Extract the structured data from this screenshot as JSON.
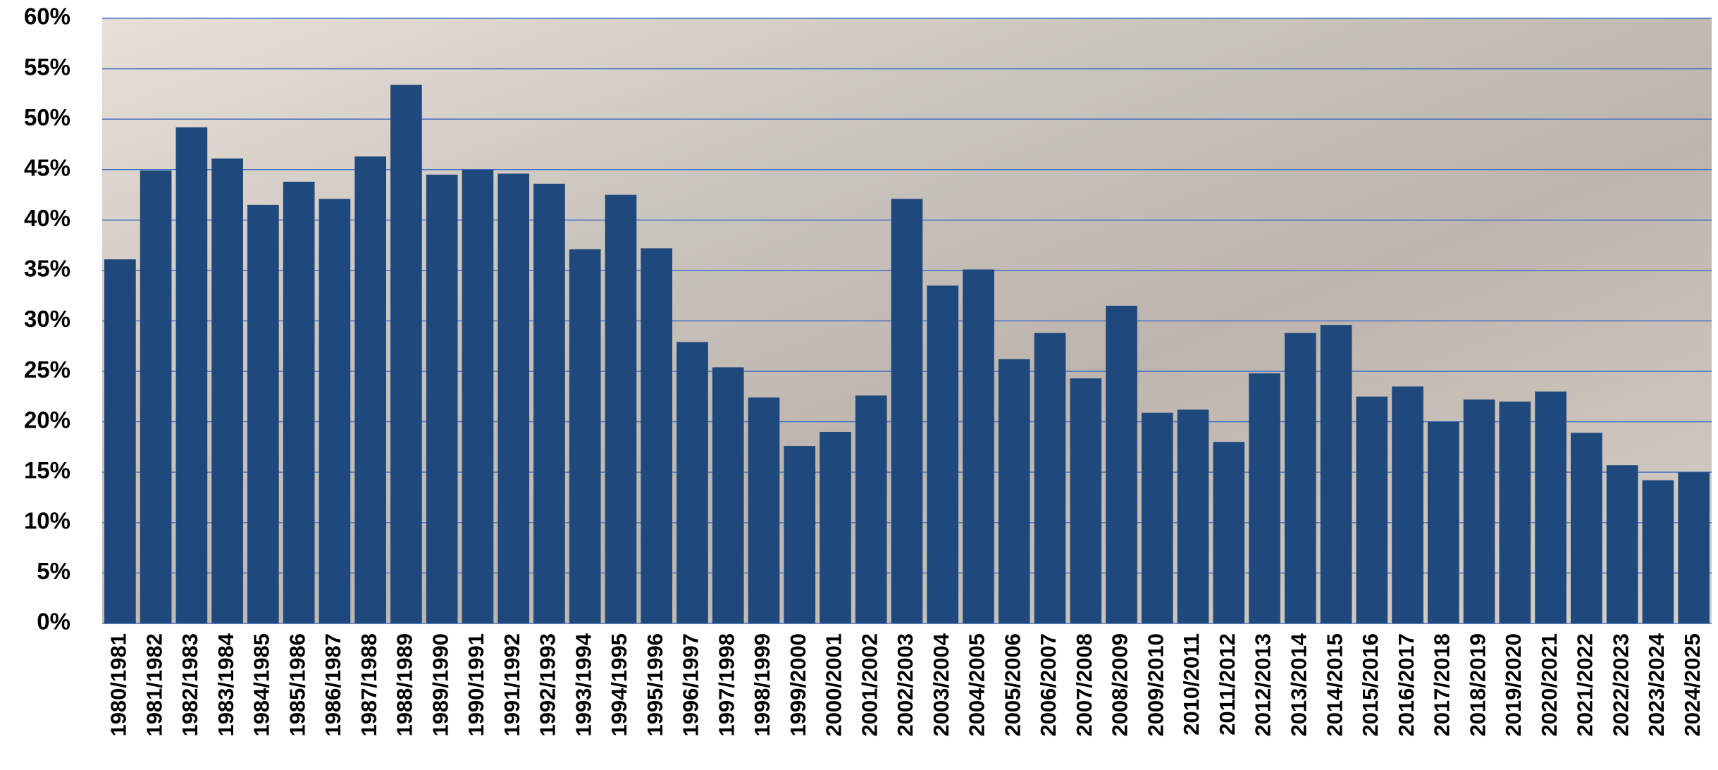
{
  "chart_data": {
    "type": "bar",
    "categories": [
      "1980/1981",
      "1981/1982",
      "1982/1983",
      "1983/1984",
      "1984/1985",
      "1985/1986",
      "1986/1987",
      "1987/1988",
      "1988/1989",
      "1989/1990",
      "1990/1991",
      "1991/1992",
      "1992/1993",
      "1993/1994",
      "1994/1995",
      "1995/1996",
      "1996/1997",
      "1997/1998",
      "1998/1999",
      "1999/2000",
      "2000/2001",
      "2001/2002",
      "2002/2003",
      "2003/2004",
      "2004/2005",
      "2005/2006",
      "2006/2007",
      "2007/2008",
      "2008/2009",
      "2009/2010",
      "2010/2011",
      "2011/2012",
      "2012/2013",
      "2013/2014",
      "2014/2015",
      "2015/2016",
      "2016/2017",
      "2017/2018",
      "2018/2019",
      "2019/2020",
      "2020/2021",
      "2021/2022",
      "2022/2023",
      "2023/2024",
      "2024/2025"
    ],
    "values": [
      36.1,
      44.9,
      49.2,
      46.1,
      41.5,
      43.8,
      42.1,
      46.3,
      53.4,
      44.5,
      45.0,
      44.6,
      43.6,
      37.1,
      42.5,
      37.2,
      27.9,
      25.4,
      22.4,
      17.6,
      19.0,
      22.6,
      42.1,
      33.5,
      35.1,
      26.2,
      28.8,
      24.3,
      31.5,
      20.9,
      21.2,
      18.0,
      24.8,
      28.8,
      29.6,
      22.5,
      23.5,
      20.0,
      22.2,
      22.0,
      23.0,
      18.9,
      15.7,
      14.2,
      15.0
    ],
    "color": "#1f497d",
    "ylim": [
      0,
      60
    ],
    "yticks": [
      {
        "value": 0,
        "label": "0%"
      },
      {
        "value": 5,
        "label": "5%"
      },
      {
        "value": 10,
        "label": "10%"
      },
      {
        "value": 15,
        "label": "15%"
      },
      {
        "value": 20,
        "label": "20%"
      },
      {
        "value": 25,
        "label": "25%"
      },
      {
        "value": 30,
        "label": "30%"
      },
      {
        "value": 35,
        "label": "35%"
      },
      {
        "value": 40,
        "label": "40%"
      },
      {
        "value": 45,
        "label": "45%"
      },
      {
        "value": 50,
        "label": "50%"
      },
      {
        "value": 55,
        "label": "55%"
      },
      {
        "value": 60,
        "label": "60%"
      }
    ],
    "grid": true
  }
}
